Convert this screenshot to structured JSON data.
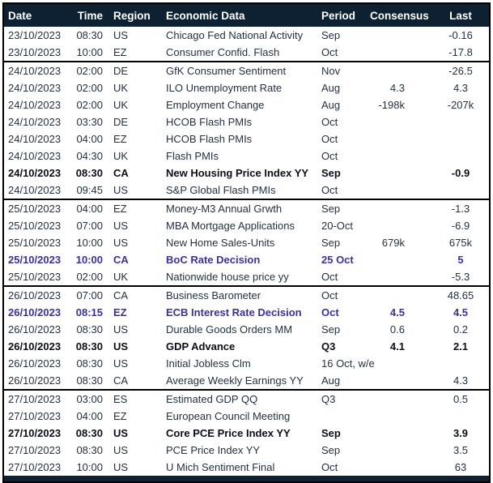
{
  "colors": {
    "header_bg": "#0E2132",
    "header_text": "#FFFFFF",
    "body_text": "#243140",
    "bold_row_text": "#0B0E1A",
    "highlight_row_text": "#3B319B",
    "border": "#000000"
  },
  "table": {
    "headers": {
      "date": "Date",
      "time": "Time",
      "region": "Region",
      "event": "Economic Data",
      "period": "Period",
      "consensus": "Consensus",
      "last": "Last"
    },
    "rows": [
      {
        "date": "23/10/2023",
        "time": "08:30",
        "region": "US",
        "event": "Chicago Fed National Activity",
        "period": "Sep",
        "consensus": "",
        "last": "-0.16",
        "style": "normal",
        "group_start": false
      },
      {
        "date": "23/10/2023",
        "time": "10:00",
        "region": "EZ",
        "event": "Consumer Confid. Flash",
        "period": "Oct",
        "consensus": "",
        "last": "-17.8",
        "style": "normal",
        "group_start": false
      },
      {
        "date": "24/10/2023",
        "time": "02:00",
        "region": "DE",
        "event": "GfK Consumer Sentiment",
        "period": "Nov",
        "consensus": "",
        "last": "-26.5",
        "style": "normal",
        "group_start": true
      },
      {
        "date": "24/10/2023",
        "time": "02:00",
        "region": "UK",
        "event": "ILO Unemployment Rate",
        "period": "Aug",
        "consensus": "4.3",
        "last": "4.3",
        "style": "normal",
        "group_start": false
      },
      {
        "date": "24/10/2023",
        "time": "02:00",
        "region": "UK",
        "event": "Employment Change",
        "period": "Aug",
        "consensus": "-198k",
        "last": "-207k",
        "style": "normal",
        "group_start": false
      },
      {
        "date": "24/10/2023",
        "time": "03:30",
        "region": "DE",
        "event": "HCOB Flash PMIs",
        "period": "Oct",
        "consensus": "",
        "last": "",
        "style": "normal",
        "group_start": false
      },
      {
        "date": "24/10/2023",
        "time": "04:00",
        "region": "EZ",
        "event": "HCOB Flash PMIs",
        "period": "Oct",
        "consensus": "",
        "last": "",
        "style": "normal",
        "group_start": false
      },
      {
        "date": "24/10/2023",
        "time": "04:30",
        "region": "UK",
        "event": "Flash PMIs",
        "period": "Oct",
        "consensus": "",
        "last": "",
        "style": "normal",
        "group_start": false
      },
      {
        "date": "24/10/2023",
        "time": "08:30",
        "region": "CA",
        "event": "New Housing Price Index YY",
        "period": "Sep",
        "consensus": "",
        "last": "-0.9",
        "style": "bold",
        "group_start": false
      },
      {
        "date": "24/10/2023",
        "time": "09:45",
        "region": "US",
        "event": "S&P Global Flash PMIs",
        "period": "Oct",
        "consensus": "",
        "last": "",
        "style": "normal",
        "group_start": false
      },
      {
        "date": "25/10/2023",
        "time": "04:00",
        "region": "EZ",
        "event": "Money-M3 Annual Grwth",
        "period": "Sep",
        "consensus": "",
        "last": "-1.3",
        "style": "normal",
        "group_start": true
      },
      {
        "date": "25/10/2023",
        "time": "07:00",
        "region": "US",
        "event": "MBA Mortgage Applications",
        "period": "20-Oct",
        "consensus": "",
        "last": "-6.9",
        "style": "normal",
        "group_start": false
      },
      {
        "date": "25/10/2023",
        "time": "10:00",
        "region": "US",
        "event": "New Home Sales-Units",
        "period": "Sep",
        "consensus": "679k",
        "last": "675k",
        "style": "normal",
        "group_start": false
      },
      {
        "date": "25/10/2023",
        "time": "10:00",
        "region": "CA",
        "event": "BoC Rate Decision",
        "period": "25 Oct",
        "consensus": "",
        "last": "5",
        "style": "highlight",
        "group_start": false
      },
      {
        "date": "25/10/2023",
        "time": "02:00",
        "region": "UK",
        "event": "Nationwide house price yy",
        "period": "Oct",
        "consensus": "",
        "last": "-5.3",
        "style": "normal",
        "group_start": false
      },
      {
        "date": "26/10/2023",
        "time": "07:00",
        "region": "CA",
        "event": "Business Barometer",
        "period": "Oct",
        "consensus": "",
        "last": "48.65",
        "style": "normal",
        "group_start": true
      },
      {
        "date": "26/10/2023",
        "time": "08:15",
        "region": "EZ",
        "event": "ECB Interest Rate Decision",
        "period": "Oct",
        "consensus": "4.5",
        "last": "4.5",
        "style": "highlight",
        "group_start": false
      },
      {
        "date": "26/10/2023",
        "time": "08:30",
        "region": "US",
        "event": "Durable Goods Orders MM",
        "period": "Sep",
        "consensus": "0.6",
        "last": "0.2",
        "style": "normal",
        "group_start": false
      },
      {
        "date": "26/10/2023",
        "time": "08:30",
        "region": "US",
        "event": "GDP Advance",
        "period": "Q3",
        "consensus": "4.1",
        "last": "2.1",
        "style": "bold",
        "group_start": false
      },
      {
        "date": "26/10/2023",
        "time": "08:30",
        "region": "US",
        "event": "Initial Jobless Clm",
        "period": "16 Oct, w/e",
        "consensus": "",
        "last": "",
        "style": "normal",
        "group_start": false
      },
      {
        "date": "26/10/2023",
        "time": "08:30",
        "region": "CA",
        "event": "Average Weekly Earnings YY",
        "period": "Aug",
        "consensus": "",
        "last": "4.3",
        "style": "normal",
        "group_start": false
      },
      {
        "date": "27/10/2023",
        "time": "03:00",
        "region": "ES",
        "event": "Estimated GDP QQ",
        "period": "Q3",
        "consensus": "",
        "last": "0.5",
        "style": "normal",
        "group_start": true
      },
      {
        "date": "27/10/2023",
        "time": "04:00",
        "region": "EZ",
        "event": "European Council Meeting",
        "period": "",
        "consensus": "",
        "last": "",
        "style": "normal",
        "group_start": false
      },
      {
        "date": "27/10/2023",
        "time": "08:30",
        "region": "US",
        "event": "Core PCE Price Index YY",
        "period": "Sep",
        "consensus": "",
        "last": "3.9",
        "style": "bold",
        "group_start": false
      },
      {
        "date": "27/10/2023",
        "time": "08:30",
        "region": "US",
        "event": "PCE Price Index YY",
        "period": "Sep",
        "consensus": "",
        "last": "3.5",
        "style": "normal",
        "group_start": false
      },
      {
        "date": "27/10/2023",
        "time": "10:00",
        "region": "US",
        "event": "U Mich Sentiment Final",
        "period": "Oct",
        "consensus": "",
        "last": "63",
        "style": "normal",
        "group_start": false
      }
    ]
  }
}
